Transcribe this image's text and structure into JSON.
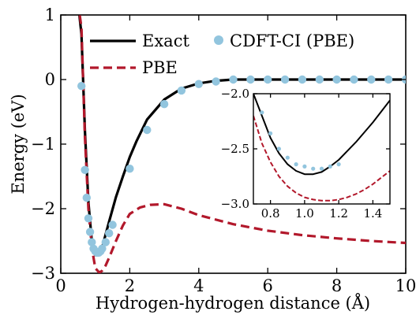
{
  "chart_data": {
    "type": "line",
    "xlabel": "Hydrogen-hydrogen distance (Å)",
    "ylabel": "Energy (eV)",
    "xlim": [
      0,
      10
    ],
    "ylim": [
      -3,
      1
    ],
    "xticks": [
      0,
      2,
      4,
      6,
      8,
      10
    ],
    "xtick_labels": [
      "0",
      "2",
      "4",
      "6",
      "8",
      "10"
    ],
    "yticks": [
      -3,
      -2,
      -1,
      0,
      1
    ],
    "ytick_labels": [
      "−3",
      "−2",
      "−1",
      "0",
      "1"
    ],
    "legend_position": "top",
    "colors": {
      "exact": "#000000",
      "pbe": "#b2182b",
      "cdft": "#92c5de"
    },
    "series": [
      {
        "name": "Exact",
        "style": "solid",
        "color": "#000000",
        "x": [
          0.5,
          0.6,
          0.7,
          0.8,
          0.9,
          1.0,
          1.1,
          1.2,
          1.3,
          1.4,
          1.6,
          1.8,
          2.0,
          2.2,
          2.5,
          3.0,
          3.5,
          4.0,
          4.5,
          5.0,
          6.0,
          8.0,
          10.0
        ],
        "y": [
          1.2,
          0.7,
          -0.8,
          -1.9,
          -2.5,
          -2.72,
          -2.72,
          -2.6,
          -2.4,
          -2.2,
          -1.82,
          -1.5,
          -1.2,
          -0.95,
          -0.62,
          -0.31,
          -0.14,
          -0.06,
          -0.02,
          0.0,
          0.0,
          0.0,
          0.0
        ]
      },
      {
        "name": "PBE",
        "style": "dashed",
        "color": "#b2182b",
        "x": [
          0.5,
          0.6,
          0.7,
          0.8,
          0.9,
          1.0,
          1.1,
          1.15,
          1.2,
          1.3,
          1.4,
          1.6,
          1.8,
          2.0,
          2.3,
          2.6,
          3.0,
          3.5,
          4.0,
          5.0,
          6.0,
          7.0,
          8.0,
          9.0,
          10.0
        ],
        "y": [
          1.2,
          0.8,
          -0.9,
          -2.0,
          -2.6,
          -2.92,
          -2.98,
          -2.98,
          -2.96,
          -2.88,
          -2.76,
          -2.5,
          -2.26,
          -2.08,
          -1.98,
          -1.94,
          -1.93,
          -2.0,
          -2.1,
          -2.24,
          -2.34,
          -2.41,
          -2.46,
          -2.5,
          -2.53
        ]
      },
      {
        "name": "CDFT-CI (PBE)",
        "style": "markers",
        "color": "#92c5de",
        "x": [
          0.6,
          0.7,
          0.75,
          0.8,
          0.85,
          0.9,
          0.95,
          1.0,
          1.05,
          1.1,
          1.15,
          1.2,
          1.3,
          1.4,
          1.5,
          2.0,
          2.5,
          3.0,
          3.5,
          4.0,
          4.5,
          5.0,
          5.5,
          6.0,
          6.5,
          7.0,
          7.5,
          8.0,
          8.5,
          9.0,
          9.5,
          10.0
        ],
        "y": [
          -0.1,
          -1.4,
          -1.83,
          -2.15,
          -2.36,
          -2.52,
          -2.62,
          -2.66,
          -2.68,
          -2.68,
          -2.66,
          -2.62,
          -2.52,
          -2.38,
          -2.25,
          -1.38,
          -0.78,
          -0.38,
          -0.17,
          -0.07,
          -0.03,
          0.0,
          0.0,
          0.0,
          0.0,
          0.0,
          0.0,
          0.0,
          0.0,
          0.0,
          0.0,
          0.0
        ]
      }
    ],
    "inset": {
      "xlim": [
        0.7,
        1.5
      ],
      "ylim": [
        -3.0,
        -2.0
      ],
      "xticks": [
        0.8,
        1.0,
        1.2,
        1.4
      ],
      "xtick_labels": [
        "0.8",
        "1.0",
        "1.2",
        "1.4"
      ],
      "yticks": [
        -3.0,
        -2.5,
        -2.0
      ],
      "ytick_labels": [
        "−3.0",
        "−2.5",
        "−2.0"
      ],
      "series": [
        {
          "name": "Exact",
          "style": "solid",
          "color": "#000000",
          "x": [
            0.7,
            0.75,
            0.8,
            0.85,
            0.9,
            0.95,
            1.0,
            1.05,
            1.1,
            1.15,
            1.2,
            1.25,
            1.3,
            1.35,
            1.4,
            1.45,
            1.5
          ],
          "y": [
            -2.0,
            -2.2,
            -2.4,
            -2.54,
            -2.64,
            -2.7,
            -2.73,
            -2.73,
            -2.71,
            -2.66,
            -2.6,
            -2.52,
            -2.44,
            -2.35,
            -2.26,
            -2.16,
            -2.06
          ]
        },
        {
          "name": "PBE",
          "style": "dashed",
          "color": "#b2182b",
          "x": [
            0.7,
            0.75,
            0.8,
            0.85,
            0.9,
            0.95,
            1.0,
            1.05,
            1.1,
            1.15,
            1.2,
            1.25,
            1.3,
            1.35,
            1.4,
            1.45,
            1.5
          ],
          "y": [
            -2.2,
            -2.45,
            -2.62,
            -2.75,
            -2.84,
            -2.9,
            -2.94,
            -2.96,
            -2.97,
            -2.97,
            -2.96,
            -2.94,
            -2.91,
            -2.87,
            -2.82,
            -2.76,
            -2.7
          ]
        },
        {
          "name": "CDFT-CI (PBE)",
          "style": "markers",
          "color": "#92c5de",
          "x": [
            0.7,
            0.75,
            0.8,
            0.85,
            0.9,
            0.95,
            1.0,
            1.05,
            1.1,
            1.15,
            1.2
          ],
          "y": [
            -1.98,
            -2.17,
            -2.36,
            -2.5,
            -2.58,
            -2.64,
            -2.66,
            -2.68,
            -2.68,
            -2.66,
            -2.64
          ]
        }
      ]
    }
  }
}
